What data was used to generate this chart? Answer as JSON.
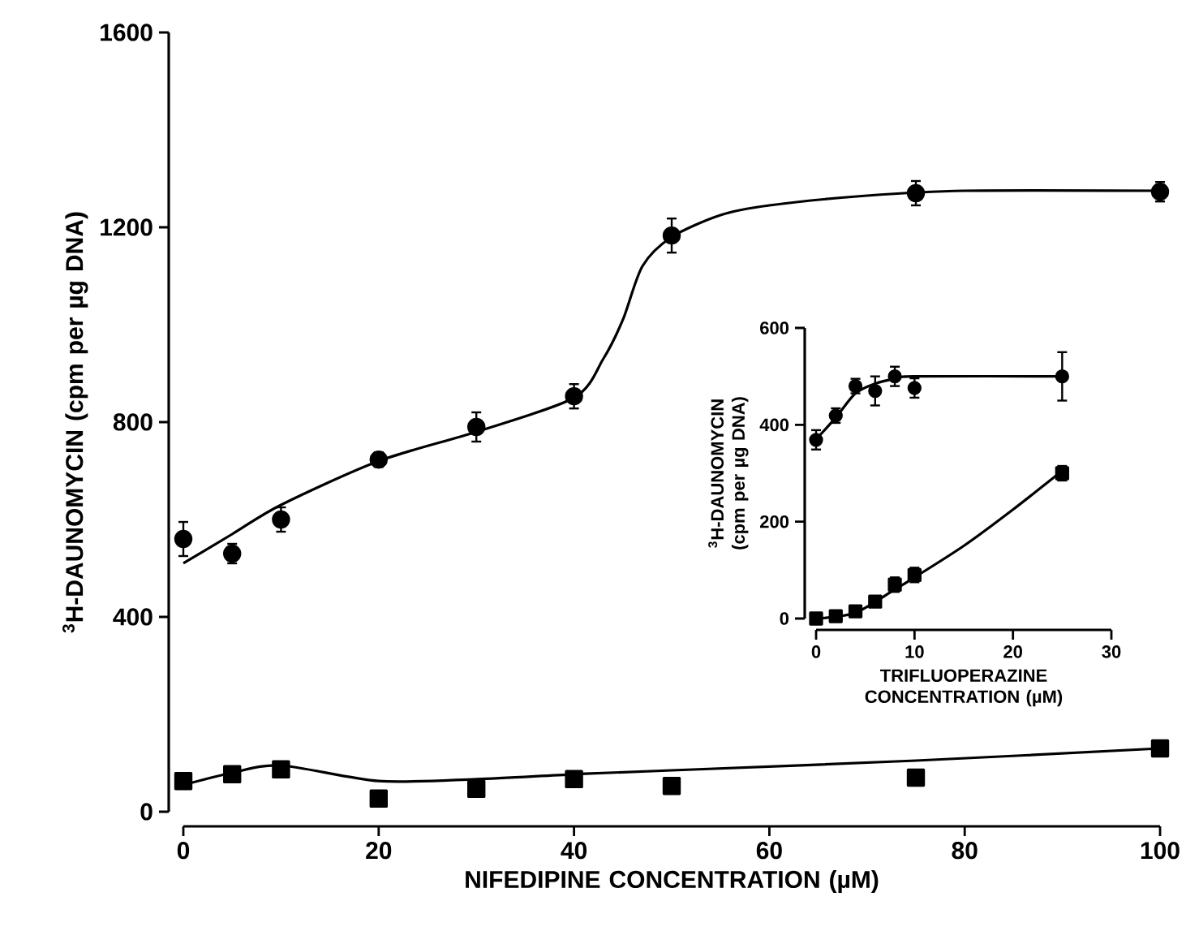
{
  "chart_data": [
    {
      "type": "scatter",
      "xlabel": "NIFEDIPINE CONCENTRATION (µM)",
      "ylabel": "$^{3}$H-DAUNOMYCIN (cpm per µg DNA)",
      "xlim": [
        0,
        100
      ],
      "ylim": [
        0,
        1600
      ],
      "xticks": [
        0,
        20,
        40,
        60,
        80,
        100
      ],
      "yticks": [
        0,
        400,
        800,
        1200,
        1600
      ],
      "series": [
        {
          "marker": "circle",
          "color": "#000000",
          "x": [
            0,
            5,
            10,
            20,
            30,
            40,
            50,
            75,
            100
          ],
          "values": [
            560,
            530,
            600,
            723,
            790,
            853,
            1183,
            1270,
            1273
          ],
          "errors": [
            35,
            20,
            25,
            15,
            30,
            25,
            35,
            25,
            20
          ]
        },
        {
          "type": "line",
          "marker": "none",
          "color": "#000000",
          "x": [
            0,
            5,
            10,
            20,
            30,
            40,
            43,
            45,
            47,
            50,
            55,
            60,
            70,
            80,
            100
          ],
          "values": [
            510,
            570,
            630,
            720,
            780,
            850,
            930,
            1010,
            1120,
            1180,
            1225,
            1245,
            1265,
            1275,
            1275
          ]
        },
        {
          "marker": "square",
          "color": "#000000",
          "x": [
            0,
            5,
            10,
            20,
            30,
            40,
            50,
            75,
            100
          ],
          "values": [
            63,
            77,
            87,
            27,
            47,
            67,
            53,
            70,
            130
          ]
        },
        {
          "type": "line",
          "marker": "none",
          "color": "#000000",
          "x": [
            0,
            5,
            10,
            20,
            30,
            40,
            50,
            75,
            100
          ],
          "values": [
            55,
            80,
            95,
            63,
            67,
            77,
            85,
            105,
            130
          ]
        }
      ]
    },
    {
      "type": "scatter",
      "xlabel": "TRIFLUOPERAZINE CONCENTRATION (µM)",
      "ylabel": "$^{3}$H-DAUNOMYCIN (cpm per µg DNA)",
      "xlim": [
        0,
        30
      ],
      "ylim": [
        0,
        600
      ],
      "xticks": [
        0,
        10,
        20,
        30
      ],
      "yticks": [
        0,
        200,
        400,
        600
      ],
      "series": [
        {
          "marker": "circle",
          "color": "#000000",
          "x": [
            0,
            2,
            4,
            6,
            8,
            10,
            25
          ],
          "values": [
            369,
            419,
            480,
            470,
            500,
            476,
            500
          ],
          "errors": [
            20,
            15,
            15,
            30,
            20,
            20,
            50
          ]
        },
        {
          "type": "line",
          "marker": "none",
          "color": "#000000",
          "x": [
            0,
            2,
            4,
            6,
            8,
            10,
            25
          ],
          "values": [
            370,
            415,
            465,
            485,
            495,
            500,
            500
          ]
        },
        {
          "marker": "square",
          "color": "#000000",
          "x": [
            0,
            2,
            4,
            6,
            8,
            10,
            25
          ],
          "values": [
            0,
            5,
            15,
            35,
            70,
            90,
            300
          ],
          "errors": [
            10,
            10,
            10,
            10,
            15,
            15,
            15
          ]
        },
        {
          "type": "line",
          "marker": "none",
          "color": "#000000",
          "x": [
            0,
            4,
            8,
            10,
            15,
            20,
            25
          ],
          "values": [
            0,
            12,
            60,
            85,
            150,
            225,
            305
          ]
        }
      ]
    }
  ]
}
